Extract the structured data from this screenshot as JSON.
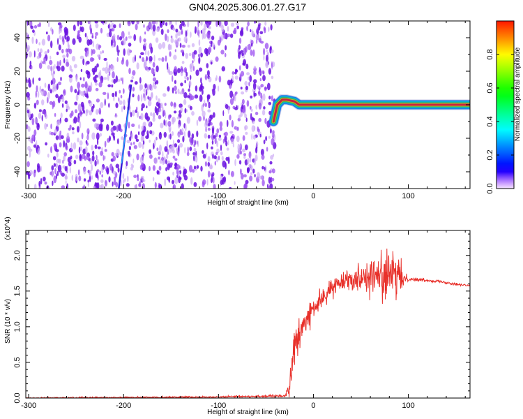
{
  "title": "GN04.2025.306.01.27.G17",
  "chart_data": [
    {
      "type": "heatmap",
      "title": "GN04.2025.306.01.27.G17",
      "xlabel": "Height of straight line (km)",
      "ylabel": "Frequency (Hz)",
      "xlim": [
        -303,
        165
      ],
      "ylim": [
        -50,
        50
      ],
      "x_ticks": [
        "-300",
        "-200",
        "-100",
        "0",
        "100"
      ],
      "x_tick_values": [
        -300,
        -200,
        -100,
        0,
        100
      ],
      "y_ticks": [
        "-40",
        "-20",
        "0",
        "20",
        "40"
      ],
      "y_tick_values": [
        -40,
        -20,
        0,
        20,
        40
      ],
      "colorbar": {
        "label": "Normalized spectral amplitude",
        "range": [
          0,
          1
        ],
        "ticks": [
          "0.0",
          "0.2",
          "0.4",
          "0.6",
          "0.8"
        ],
        "tick_values": [
          0,
          0.2,
          0.4,
          0.6,
          0.8
        ],
        "colormap": "rainbow (purple to red)"
      },
      "features": {
        "noise_region_x": [
          -303,
          -45
        ],
        "streak": {
          "x_start": -205,
          "y_start": -50,
          "x_end": -192,
          "y_end": 12
        },
        "carrier": [
          [
            -42,
            -10
          ],
          [
            -38,
            0
          ],
          [
            -33,
            3
          ],
          [
            -28,
            3
          ],
          [
            -20,
            2
          ],
          [
            -15,
            0
          ],
          [
            -10,
            0
          ],
          [
            0,
            0
          ],
          [
            50,
            0
          ],
          [
            100,
            0
          ],
          [
            130,
            0
          ],
          [
            150,
            0
          ],
          [
            165,
            0
          ]
        ]
      }
    },
    {
      "type": "line",
      "xlabel": "Height of straight line (km)",
      "ylabel": "SNR (10 * v/v)",
      "y_multiplier": "(x10^4)",
      "xlim": [
        -303,
        165
      ],
      "ylim": [
        0,
        23500
      ],
      "x_ticks": [
        "-300",
        "-200",
        "-100",
        "0",
        "100"
      ],
      "x_tick_values": [
        -300,
        -200,
        -100,
        0,
        100
      ],
      "y_ticks": [
        "0.0",
        "0.5",
        "1.0",
        "1.5",
        "2.0"
      ],
      "y_tick_values": [
        0,
        5000,
        10000,
        15000,
        20000
      ],
      "series": [
        {
          "color": "#e8302a",
          "envelope": {
            "x": [
              -303,
              -100,
              -30,
              -25,
              -23,
              -20,
              -15,
              -10,
              -5,
              0,
              10,
              20,
              30,
              50,
              70,
              85,
              100,
              130,
              165
            ],
            "mean": [
              0,
              150,
              300,
              1500,
              4500,
              7000,
              8500,
              10500,
              11500,
              12500,
              14000,
              15500,
              16500,
              17000,
              17200,
              17000,
              16700,
              16400,
              15700
            ],
            "spread": [
              100,
              120,
              200,
              1500,
              2500,
              3000,
              2500,
              2000,
              1800,
              1500,
              1400,
              1300,
              1200,
              2000,
              3500,
              3800,
              300,
              200,
              200
            ]
          }
        }
      ]
    }
  ]
}
